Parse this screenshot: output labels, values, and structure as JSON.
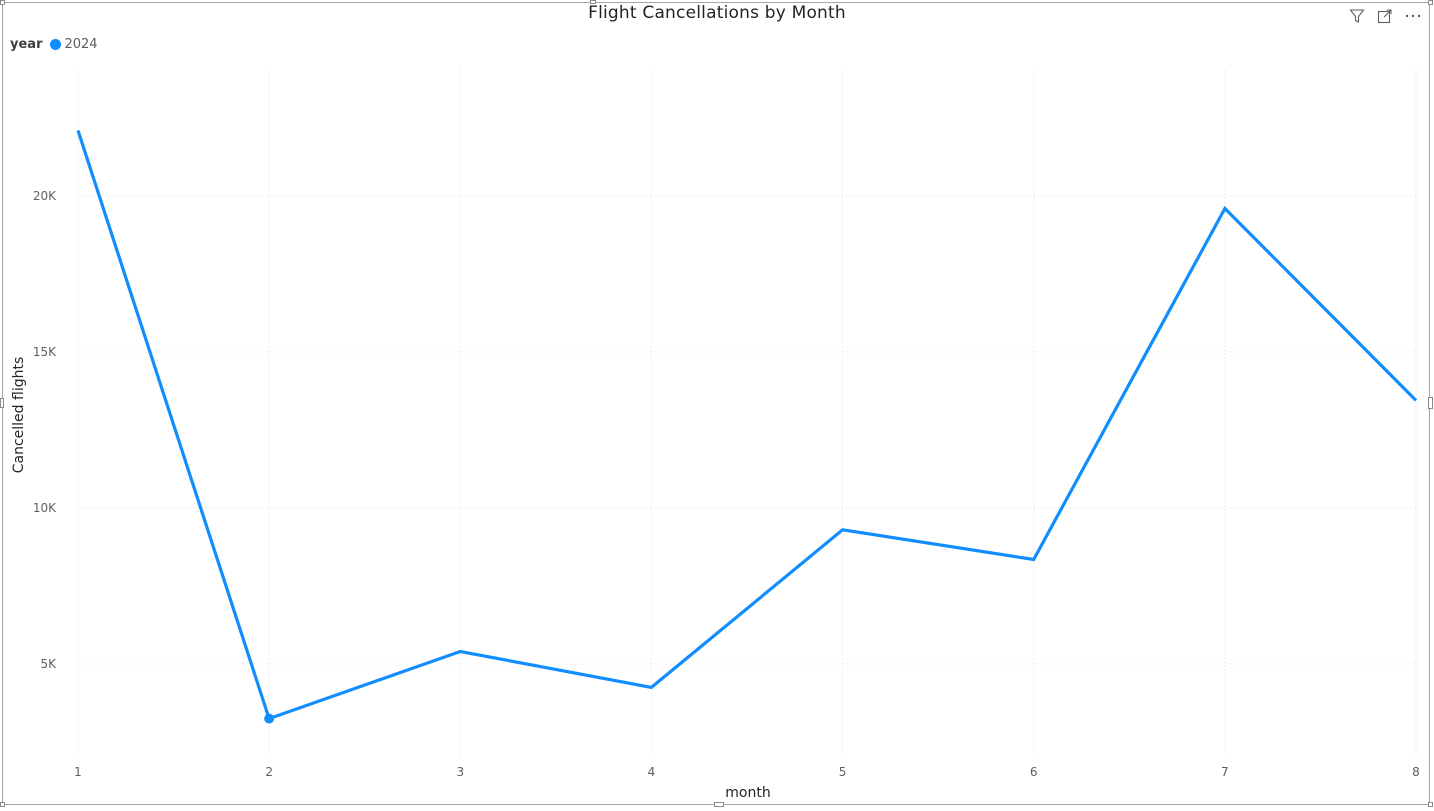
{
  "visual": {
    "title": "Flight Cancellations by Month",
    "icons": [
      "filter-icon",
      "focus-mode-icon",
      "more-options-icon"
    ]
  },
  "legend": {
    "title": "year",
    "items": [
      {
        "label": "2024",
        "color": "#118DFF"
      }
    ]
  },
  "chart_data": {
    "type": "line",
    "title": "Flight Cancellations by Month",
    "xlabel": "month",
    "ylabel": "Cancelled flights",
    "x": [
      1,
      2,
      3,
      4,
      5,
      6,
      7,
      8
    ],
    "series": [
      {
        "name": "2024",
        "color": "#118DFF",
        "values": [
          22100,
          3250,
          5400,
          4250,
          9300,
          8350,
          19600,
          13450
        ]
      }
    ],
    "xlim": [
      1,
      8
    ],
    "ylim": [
      0,
      24000
    ],
    "yticks": [
      5000,
      10000,
      15000,
      20000
    ],
    "ytick_labels": [
      "5K",
      "10K",
      "15K",
      "20K"
    ],
    "xtick_labels": [
      "1",
      "2",
      "3",
      "4",
      "5",
      "6",
      "7",
      "8"
    ],
    "grid": true,
    "legend_position": "top-left",
    "highlighted_point_index": 1
  }
}
